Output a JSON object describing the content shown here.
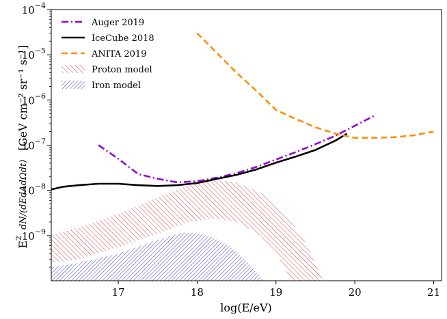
{
  "chart_data": {
    "type": "line",
    "xlabel": "log(E/eV)",
    "ylabel": "E² dN/(dE dA dΩ dt)  [GeV cm⁻² sr⁻¹ s⁻¹]",
    "ylabel_prefix": "E",
    "ylabel_prefix_sup": "2",
    "ylabel_frac_num": "dN",
    "ylabel_frac_den": "dEdAdΩdt",
    "ylabel_units": "[GeV cm⁻² sr⁻¹ s⁻¹]",
    "xlim": [
      16.15,
      21.1
    ],
    "ylim_log10": [
      -10.0,
      -4.0
    ],
    "y_scale": "log",
    "legend_position": "top-left",
    "x_ticks": [
      {
        "value": 17,
        "label": "17"
      },
      {
        "value": 18,
        "label": "18"
      },
      {
        "value": 19,
        "label": "19"
      },
      {
        "value": 20,
        "label": "20"
      },
      {
        "value": 21,
        "label": "21"
      }
    ],
    "y_ticks": [
      {
        "exp": -9,
        "base": "10",
        "sup": "−9"
      },
      {
        "exp": -8,
        "base": "10",
        "sup": "−8"
      },
      {
        "exp": -7,
        "base": "10",
        "sup": "−7"
      },
      {
        "exp": -6,
        "base": "10",
        "sup": "−6"
      },
      {
        "exp": -5,
        "base": "10",
        "sup": "−5"
      },
      {
        "exp": -4,
        "base": "10",
        "sup": "−4"
      }
    ],
    "series": [
      {
        "name": "Auger 2019",
        "style": "dashdot",
        "color": "#9400D3",
        "x": [
          16.75,
          17.0,
          17.25,
          17.5,
          17.75,
          18.0,
          18.25,
          18.5,
          18.75,
          19.0,
          19.25,
          19.5,
          19.75,
          20.0,
          20.25
        ],
        "y": [
          1e-07,
          5e-08,
          2.3e-08,
          1.8e-08,
          1.5e-08,
          1.6e-08,
          1.9e-08,
          2.4e-08,
          3.3e-08,
          4.8e-08,
          7e-08,
          1.05e-07,
          1.6e-07,
          2.7e-07,
          4.5e-07
        ]
      },
      {
        "name": "IceCube 2018",
        "style": "solid",
        "color": "#000000",
        "x": [
          16.15,
          16.3,
          16.5,
          16.75,
          17.0,
          17.25,
          17.5,
          17.75,
          18.0,
          18.25,
          18.5,
          18.75,
          19.0,
          19.25,
          19.5,
          19.75,
          19.9
        ],
        "y": [
          1.05e-08,
          1.2e-08,
          1.3e-08,
          1.4e-08,
          1.4e-08,
          1.3e-08,
          1.25e-08,
          1.3e-08,
          1.45e-08,
          1.8e-08,
          2.2e-08,
          2.9e-08,
          4.1e-08,
          5.6e-08,
          7.8e-08,
          1.25e-07,
          1.8e-07
        ]
      },
      {
        "name": "ANITA 2019",
        "style": "dashed",
        "color": "#FF8C00",
        "x": [
          18.0,
          18.25,
          18.5,
          18.75,
          19.0,
          19.25,
          19.5,
          19.75,
          20.0,
          20.25,
          20.5,
          20.75,
          21.0
        ],
        "y": [
          3e-05,
          1.1e-05,
          4e-06,
          1.6e-06,
          6e-07,
          3.8e-07,
          2.5e-07,
          1.8e-07,
          1.45e-07,
          1.45e-07,
          1.5e-07,
          1.65e-07,
          2e-07
        ]
      }
    ],
    "bands": [
      {
        "name": "Proton model",
        "color": "#d62728",
        "x": [
          16.15,
          16.5,
          17.0,
          17.5,
          17.9,
          18.2,
          18.5,
          18.8,
          19.0,
          19.2,
          19.4,
          19.6
        ],
        "upper": [
          1.05e-09,
          1.5e-09,
          3e-09,
          7e-09,
          1.3e-08,
          1.7e-08,
          1.5e-08,
          9e-09,
          5e-09,
          2e-09,
          6e-10,
          1e-10
        ],
        "lower": [
          2.5e-10,
          3e-10,
          5.5e-10,
          1.1e-09,
          2e-09,
          2.4e-09,
          2e-09,
          1e-09,
          4e-10,
          1e-10,
          1e-10,
          1e-10
        ]
      },
      {
        "name": "Iron model",
        "color": "#1f1fbf",
        "x": [
          16.15,
          16.5,
          17.0,
          17.5,
          17.8,
          18.0,
          18.2,
          18.4,
          18.6,
          18.85
        ],
        "upper": [
          2e-10,
          2.5e-10,
          4e-10,
          8e-10,
          1.15e-09,
          1.15e-09,
          9e-10,
          6e-10,
          3e-10,
          1e-10
        ],
        "lower": [
          1e-10,
          1e-10,
          1e-10,
          1e-10,
          1e-10,
          1e-10,
          1e-10,
          1e-10,
          1e-10,
          1e-10
        ]
      }
    ]
  }
}
